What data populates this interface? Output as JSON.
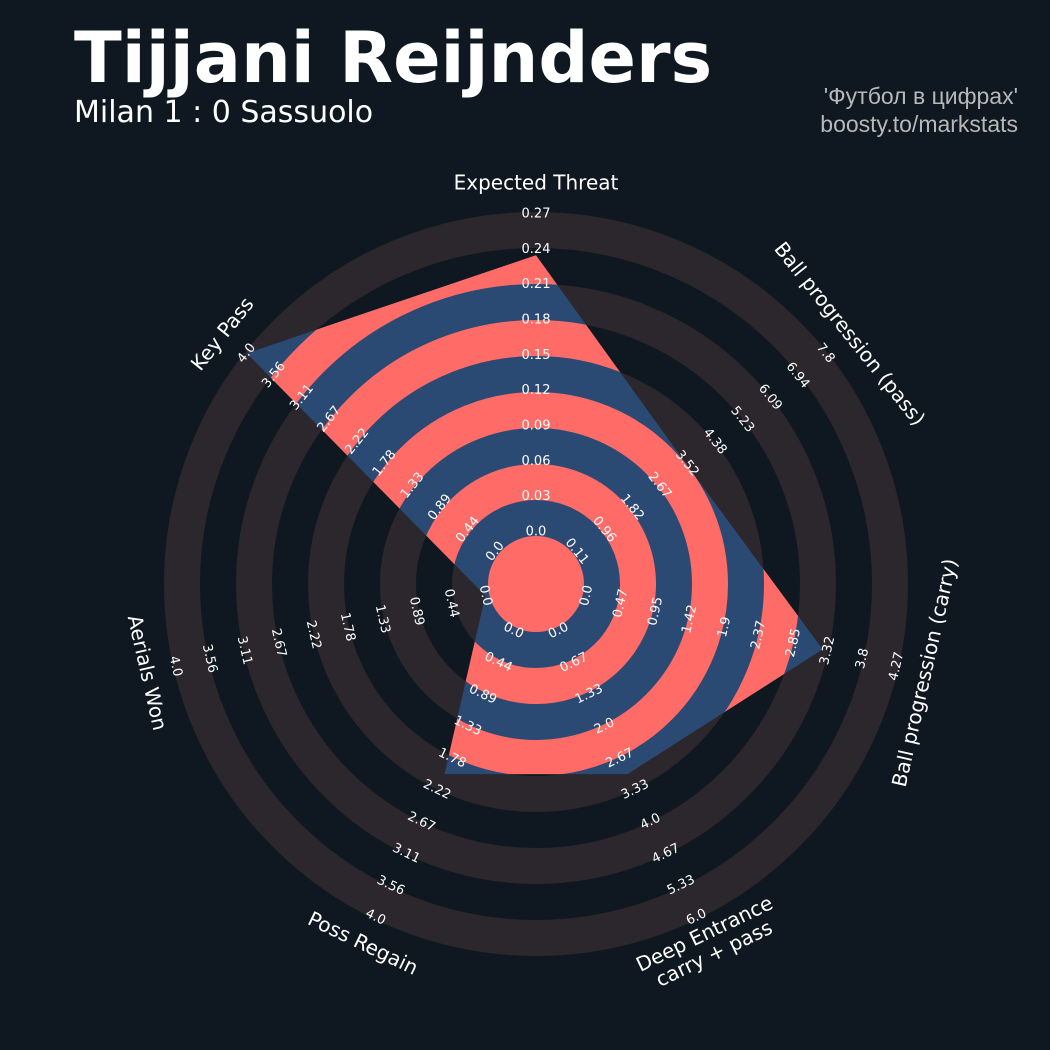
{
  "chart_data": {
    "type": "radar",
    "title": "Tijjani Reijnders",
    "subtitle": "Milan 1 : 0 Sassuolo",
    "annotations": [
      "'Футбол в цифрах'",
      "boosty.to/markstats"
    ],
    "categories": [
      "Expected Threat",
      "Ball progression (pass)",
      "Ball progression (carry)",
      "Deep Entrance\ncarry + pass",
      "Poss Regain",
      "Aerials Won",
      "Key Pass"
    ],
    "values": [
      0.235,
      3.5,
      3.25,
      3.0,
      2.0,
      0,
      4.0
    ],
    "color": "#2a4a74",
    "ring_color": "#ff6b66",
    "axes": [
      {
        "lim": [
          0,
          0.27
        ],
        "ticks": [
          {
            "value": 0,
            "label": "0.0"
          },
          0.03,
          0.06,
          0.09,
          0.12,
          0.15,
          0.18,
          0.21,
          0.24,
          0.27
        ]
      },
      {
        "lim": [
          0.11,
          7.8
        ],
        "ticks": [
          0.11,
          0.96,
          1.82,
          2.67,
          3.52,
          4.38,
          5.23,
          6.09,
          6.94,
          7.8
        ]
      },
      {
        "lim": [
          0,
          4.27
        ],
        "ticks": [
          {
            "value": 0,
            "label": "0.0"
          },
          0.47,
          0.95,
          1.42,
          1.9,
          2.37,
          2.85,
          3.32,
          3.8,
          4.27
        ]
      },
      {
        "lim": [
          0,
          6
        ],
        "ticks": [
          {
            "value": 0,
            "label": "0.0"
          },
          0.67,
          1.33,
          {
            "value": 2,
            "label": "2.0"
          },
          2.67,
          3.33,
          {
            "value": 4,
            "label": "4.0"
          },
          4.67,
          5.33,
          {
            "value": 6,
            "label": "6.0"
          }
        ]
      },
      {
        "lim": [
          0,
          4
        ],
        "ticks": [
          {
            "value": 0,
            "label": "0.0"
          },
          0.44,
          0.89,
          1.33,
          1.78,
          2.22,
          2.67,
          3.11,
          3.56,
          {
            "value": 4,
            "label": "4.0"
          }
        ]
      },
      {
        "lim": [
          0,
          4
        ],
        "ticks": [
          {
            "value": 0,
            "label": "0.0"
          },
          0.44,
          0.89,
          1.33,
          1.78,
          2.22,
          2.67,
          3.11,
          3.56,
          {
            "value": 4,
            "label": "4.0"
          }
        ]
      },
      {
        "lim": [
          0,
          4
        ],
        "ticks": [
          {
            "value": 0,
            "label": "0.0"
          },
          0.44,
          0.89,
          1.33,
          1.78,
          2.22,
          2.67,
          3.11,
          3.56,
          {
            "value": 4,
            "label": "4.0"
          }
        ]
      }
    ]
  }
}
